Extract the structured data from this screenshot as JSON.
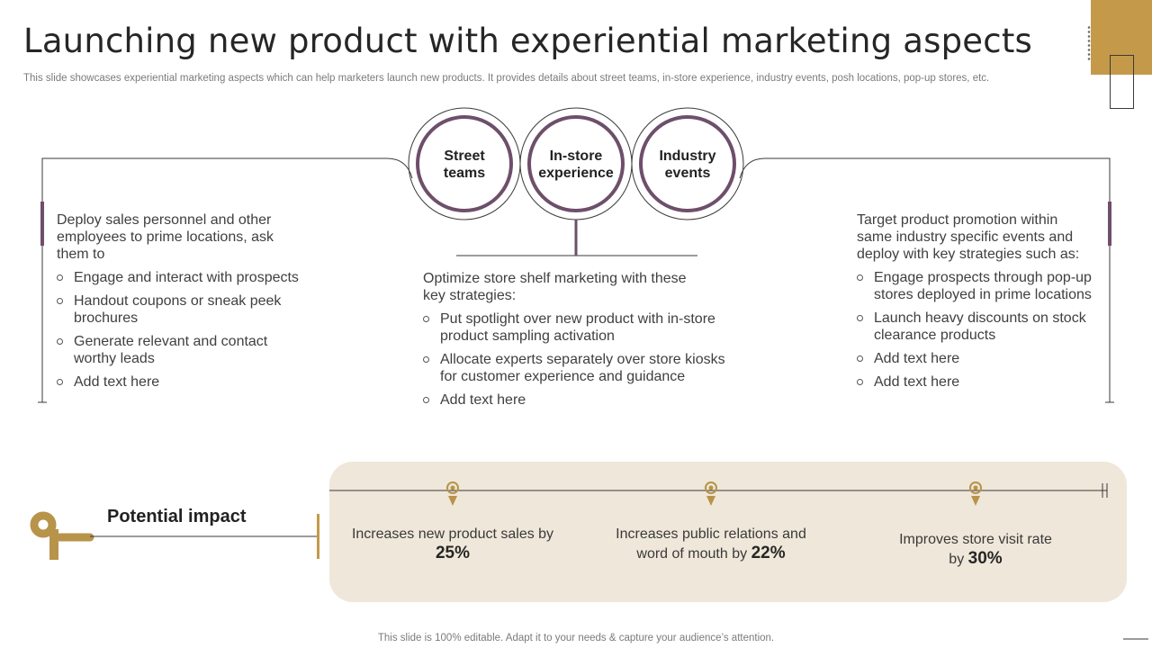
{
  "slide": {
    "title": "Launching new product with experiential marketing aspects",
    "subtitle": "This slide showcases experiential marketing aspects which can help marketers launch new products. It provides details about street teams, in-store experience, industry events, posh locations, pop-up stores, etc.",
    "footer": "This slide is 100% editable. Adapt it to your needs & capture your audience’s attention."
  },
  "colors": {
    "accent_gold": "#c49a4a",
    "accent_plum": "#6e4f6b",
    "panel_beige": "#efe7d9"
  },
  "circles": [
    {
      "line1": "Street",
      "line2": "teams"
    },
    {
      "line1": "In-store",
      "line2": "experience"
    },
    {
      "line1": "Industry",
      "line2": "events"
    }
  ],
  "columns": {
    "left": {
      "intro": "Deploy sales personnel and other employees to prime locations, ask them to",
      "bullets": [
        "Engage and interact with prospects",
        "Handout coupons or sneak peek brochures",
        "Generate relevant and contact worthy leads",
        "Add text here"
      ]
    },
    "center": {
      "intro": "Optimize store shelf marketing with these key strategies:",
      "bullets": [
        "Put spotlight over new product with in-store product sampling activation",
        "Allocate experts separately over store kiosks for customer experience and guidance",
        "Add text here"
      ]
    },
    "right": {
      "intro": "Target product promotion within same industry  specific events and deploy with key strategies such as:",
      "bullets": [
        "Engage prospects through pop-up stores deployed in prime locations",
        "Launch heavy discounts on stock clearance products",
        "Add text here",
        "Add text here"
      ]
    }
  },
  "impact": {
    "title": "Potential impact",
    "items": [
      {
        "text": "Increases new product sales by",
        "value": "25%"
      },
      {
        "text": "Increases public relations and word of mouth  by",
        "value": "22%"
      },
      {
        "text": "Improves store visit rate by",
        "value": "30%"
      }
    ]
  }
}
